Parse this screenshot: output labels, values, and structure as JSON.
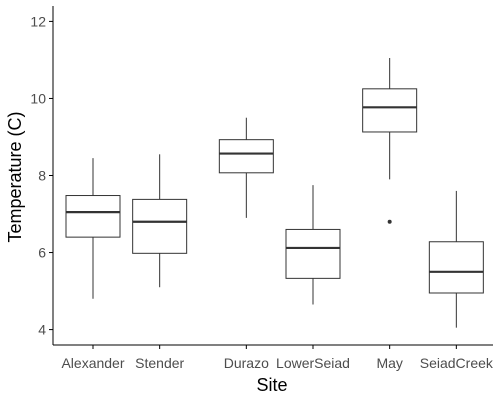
{
  "chart_data": {
    "type": "boxplot",
    "title": "",
    "xlabel": "Site",
    "ylabel": "Temperature (C)",
    "categories": [
      "Alexander",
      "Stender",
      "Durazo",
      "LowerSeiad",
      "May",
      "SeiadCreek"
    ],
    "category_positions": [
      1.0,
      2.0,
      3.3,
      4.3,
      5.45,
      6.45
    ],
    "ylim": [
      3.6,
      12.4
    ],
    "yticks": [
      4,
      6,
      8,
      10,
      12
    ],
    "ytick_labels": [
      "4",
      "6",
      "8",
      "10",
      "12"
    ],
    "grid": false,
    "legend": "none",
    "boxes": [
      {
        "category": "Alexander",
        "whisker_low": 4.8,
        "q1": 6.4,
        "median": 7.05,
        "q3": 7.48,
        "whisker_high": 8.45,
        "outliers": []
      },
      {
        "category": "Stender",
        "whisker_low": 5.1,
        "q1": 5.98,
        "median": 6.8,
        "q3": 7.38,
        "whisker_high": 8.55,
        "outliers": []
      },
      {
        "category": "Durazo",
        "whisker_low": 6.9,
        "q1": 8.07,
        "median": 8.57,
        "q3": 8.93,
        "whisker_high": 9.5,
        "outliers": []
      },
      {
        "category": "LowerSeiad",
        "whisker_low": 4.65,
        "q1": 5.33,
        "median": 6.12,
        "q3": 6.6,
        "whisker_high": 7.75,
        "outliers": []
      },
      {
        "category": "May",
        "whisker_low": 7.9,
        "q1": 9.13,
        "median": 9.77,
        "q3": 10.25,
        "whisker_high": 11.05,
        "outliers": [
          6.8
        ]
      },
      {
        "category": "SeiadCreek",
        "whisker_low": 4.05,
        "q1": 4.95,
        "median": 5.5,
        "q3": 6.28,
        "whisker_high": 7.6,
        "outliers": []
      }
    ]
  },
  "colors": {
    "box_fill": "#ffffff",
    "box_stroke": "#333333",
    "axis": "#000000",
    "tick_text": "#4d4d4d"
  }
}
